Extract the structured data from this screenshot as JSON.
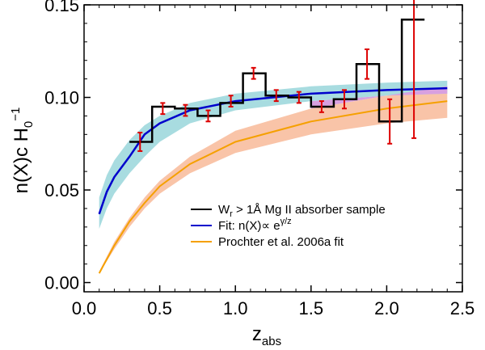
{
  "chart_data": {
    "type": "line",
    "xlabel": "z",
    "xlabel_sub": "abs",
    "ylabel": "n(X)c H",
    "ylabel_sub": "0",
    "ylabel_sup": "−1",
    "xlim": [
      0.0,
      2.5
    ],
    "ylim": [
      -0.005,
      0.15
    ],
    "xticks": [
      0.0,
      0.5,
      1.0,
      1.5,
      2.0,
      2.5
    ],
    "xtick_labels": [
      "0.0",
      "0.5",
      "1.0",
      "1.5",
      "2.0",
      "2.5"
    ],
    "yticks": [
      0.0,
      0.05,
      0.1,
      0.15
    ],
    "ytick_labels": [
      "0.00",
      "0.05",
      "0.10",
      "0.15"
    ],
    "grid": false,
    "legend_position": "bottom-right",
    "histogram": {
      "name": "W_r > 1Å Mg II absorber sample",
      "color": "#000000",
      "bins": [
        {
          "x0": 0.3,
          "x1": 0.45,
          "y": 0.076
        },
        {
          "x0": 0.45,
          "x1": 0.6,
          "y": 0.095
        },
        {
          "x0": 0.6,
          "x1": 0.75,
          "y": 0.094
        },
        {
          "x0": 0.75,
          "x1": 0.9,
          "y": 0.09
        },
        {
          "x0": 0.9,
          "x1": 1.05,
          "y": 0.097
        },
        {
          "x0": 1.05,
          "x1": 1.2,
          "y": 0.113
        },
        {
          "x0": 1.2,
          "x1": 1.35,
          "y": 0.101
        },
        {
          "x0": 1.35,
          "x1": 1.5,
          "y": 0.1
        },
        {
          "x0": 1.5,
          "x1": 1.65,
          "y": 0.095
        },
        {
          "x0": 1.65,
          "x1": 1.8,
          "y": 0.099
        },
        {
          "x0": 1.8,
          "x1": 1.95,
          "y": 0.118
        },
        {
          "x0": 1.95,
          "x1": 2.1,
          "y": 0.087
        },
        {
          "x0": 2.1,
          "x1": 2.25,
          "y": 0.142
        }
      ]
    },
    "error_bars": {
      "color": "#dd0000",
      "points": [
        {
          "x": 0.37,
          "y": 0.076,
          "err": 0.005
        },
        {
          "x": 0.52,
          "y": 0.094,
          "err": 0.003
        },
        {
          "x": 0.67,
          "y": 0.093,
          "err": 0.003
        },
        {
          "x": 0.82,
          "y": 0.09,
          "err": 0.003
        },
        {
          "x": 0.97,
          "y": 0.098,
          "err": 0.003
        },
        {
          "x": 1.12,
          "y": 0.113,
          "err": 0.003
        },
        {
          "x": 1.27,
          "y": 0.101,
          "err": 0.003
        },
        {
          "x": 1.42,
          "y": 0.1,
          "err": 0.003
        },
        {
          "x": 1.57,
          "y": 0.095,
          "err": 0.003
        },
        {
          "x": 1.72,
          "y": 0.099,
          "err": 0.005
        },
        {
          "x": 1.87,
          "y": 0.118,
          "err": 0.008
        },
        {
          "x": 2.02,
          "y": 0.087,
          "err": 0.012
        },
        {
          "x": 2.18,
          "y": 0.118,
          "err": 0.04
        }
      ]
    },
    "fit_curve": {
      "name": "Fit: n(X)∝ e^(γ/z)",
      "color": "#0000cc",
      "band_color": "#a8dce0",
      "x": [
        0.1,
        0.15,
        0.2,
        0.3,
        0.4,
        0.5,
        0.7,
        1.0,
        1.5,
        2.0,
        2.4
      ],
      "y": [
        0.037,
        0.049,
        0.057,
        0.068,
        0.08,
        0.086,
        0.093,
        0.098,
        0.102,
        0.104,
        0.105
      ],
      "band_lower": [
        0.029,
        0.04,
        0.048,
        0.059,
        0.068,
        0.076,
        0.086,
        0.093,
        0.098,
        0.101,
        0.102
      ],
      "band_upper": [
        0.046,
        0.058,
        0.066,
        0.077,
        0.085,
        0.09,
        0.097,
        0.102,
        0.106,
        0.108,
        0.109
      ]
    },
    "prochter_curve": {
      "name": "Prochter et al. 2006a fit",
      "color": "#f5a000",
      "band_color": "#f9c4a8",
      "x": [
        0.1,
        0.2,
        0.3,
        0.4,
        0.5,
        0.7,
        1.0,
        1.5,
        2.0,
        2.4
      ],
      "y": [
        0.005,
        0.02,
        0.033,
        0.043,
        0.052,
        0.064,
        0.076,
        0.087,
        0.094,
        0.098
      ],
      "band_lower": [
        0.005,
        0.018,
        0.03,
        0.04,
        0.048,
        0.059,
        0.07,
        0.08,
        0.086,
        0.089
      ],
      "band_upper": [
        0.006,
        0.022,
        0.035,
        0.046,
        0.055,
        0.068,
        0.082,
        0.094,
        0.101,
        0.106
      ]
    },
    "overlap_band_color": "#d8a0e0",
    "legend": [
      {
        "key": "histogram",
        "label_pre": "W",
        "label_sub": "r",
        "label_post": " > 1Å Mg II absorber sample",
        "color": "#000000"
      },
      {
        "key": "fit",
        "label_pre": "Fit: n(X)∝ e",
        "label_sup": "γ/z",
        "label_post": "",
        "color": "#0000cc"
      },
      {
        "key": "prochter",
        "label_pre": "Prochter et al. 2006a fit",
        "label_post": "",
        "color": "#f5a000"
      }
    ]
  }
}
